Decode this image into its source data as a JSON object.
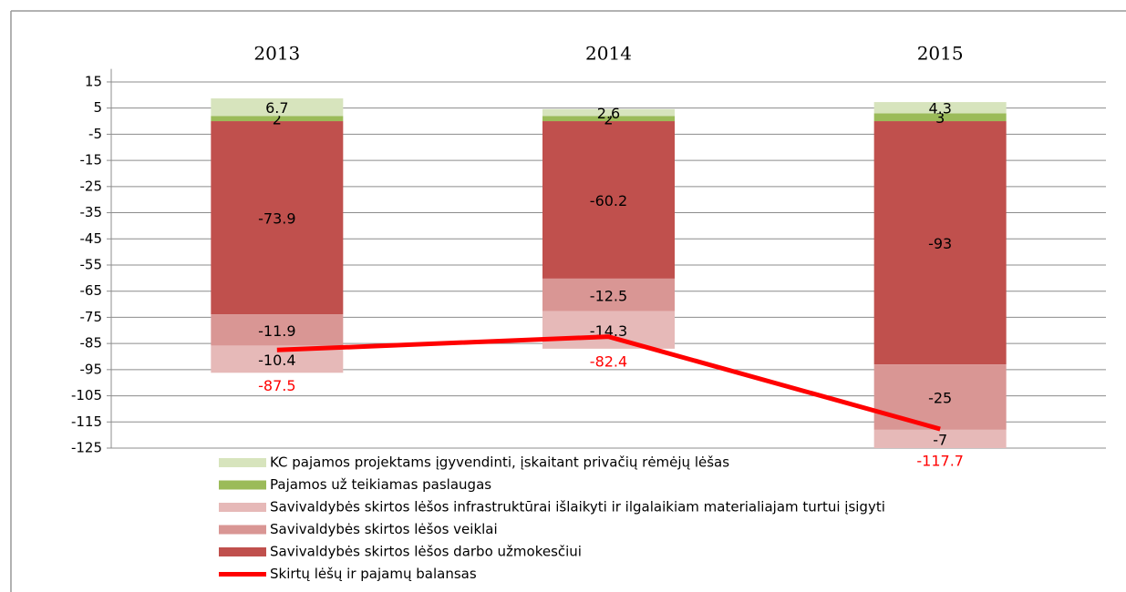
{
  "chart_data": {
    "type": "bar",
    "stacked": true,
    "categories": [
      "2013",
      "2014",
      "2015"
    ],
    "series": [
      {
        "name": "KC pajamos projektams įgyvendinti, įskaitant privačių rėmėjų lėšas",
        "color": "#d7e4bd",
        "values": [
          6.7,
          2.6,
          4.3
        ]
      },
      {
        "name": "Pajamos už teikiamas paslaugas",
        "color": "#9bbb59",
        "values": [
          2,
          2,
          3
        ]
      },
      {
        "name": "Savivaldybės skirtos lėšos infrastruktūrai išlaikyti ir ilgalaikiam materialiajam turtui įsigyti",
        "color": "#e6b9b8",
        "values": [
          -10.4,
          -14.3,
          -7
        ]
      },
      {
        "name": "Savivaldybės skirtos lėšos veiklai",
        "color": "#d99694",
        "values": [
          -11.9,
          -12.5,
          -25
        ]
      },
      {
        "name": "Savivaldybės skirtos lėšos darbo užmokesčiui",
        "color": "#c0504d",
        "values": [
          -73.9,
          -60.2,
          -93
        ]
      },
      {
        "name": "Skirtų lėšų ir pajamų balansas",
        "color": "#ff0000",
        "type": "line",
        "values": [
          -87.5,
          -82.4,
          -117.7
        ]
      }
    ],
    "ylim": [
      -125,
      20
    ],
    "yticks": [
      15,
      5,
      -5,
      -15,
      -25,
      -35,
      -45,
      -55,
      -65,
      -75,
      -85,
      -95,
      -105,
      -115,
      -125
    ],
    "grid": true
  }
}
